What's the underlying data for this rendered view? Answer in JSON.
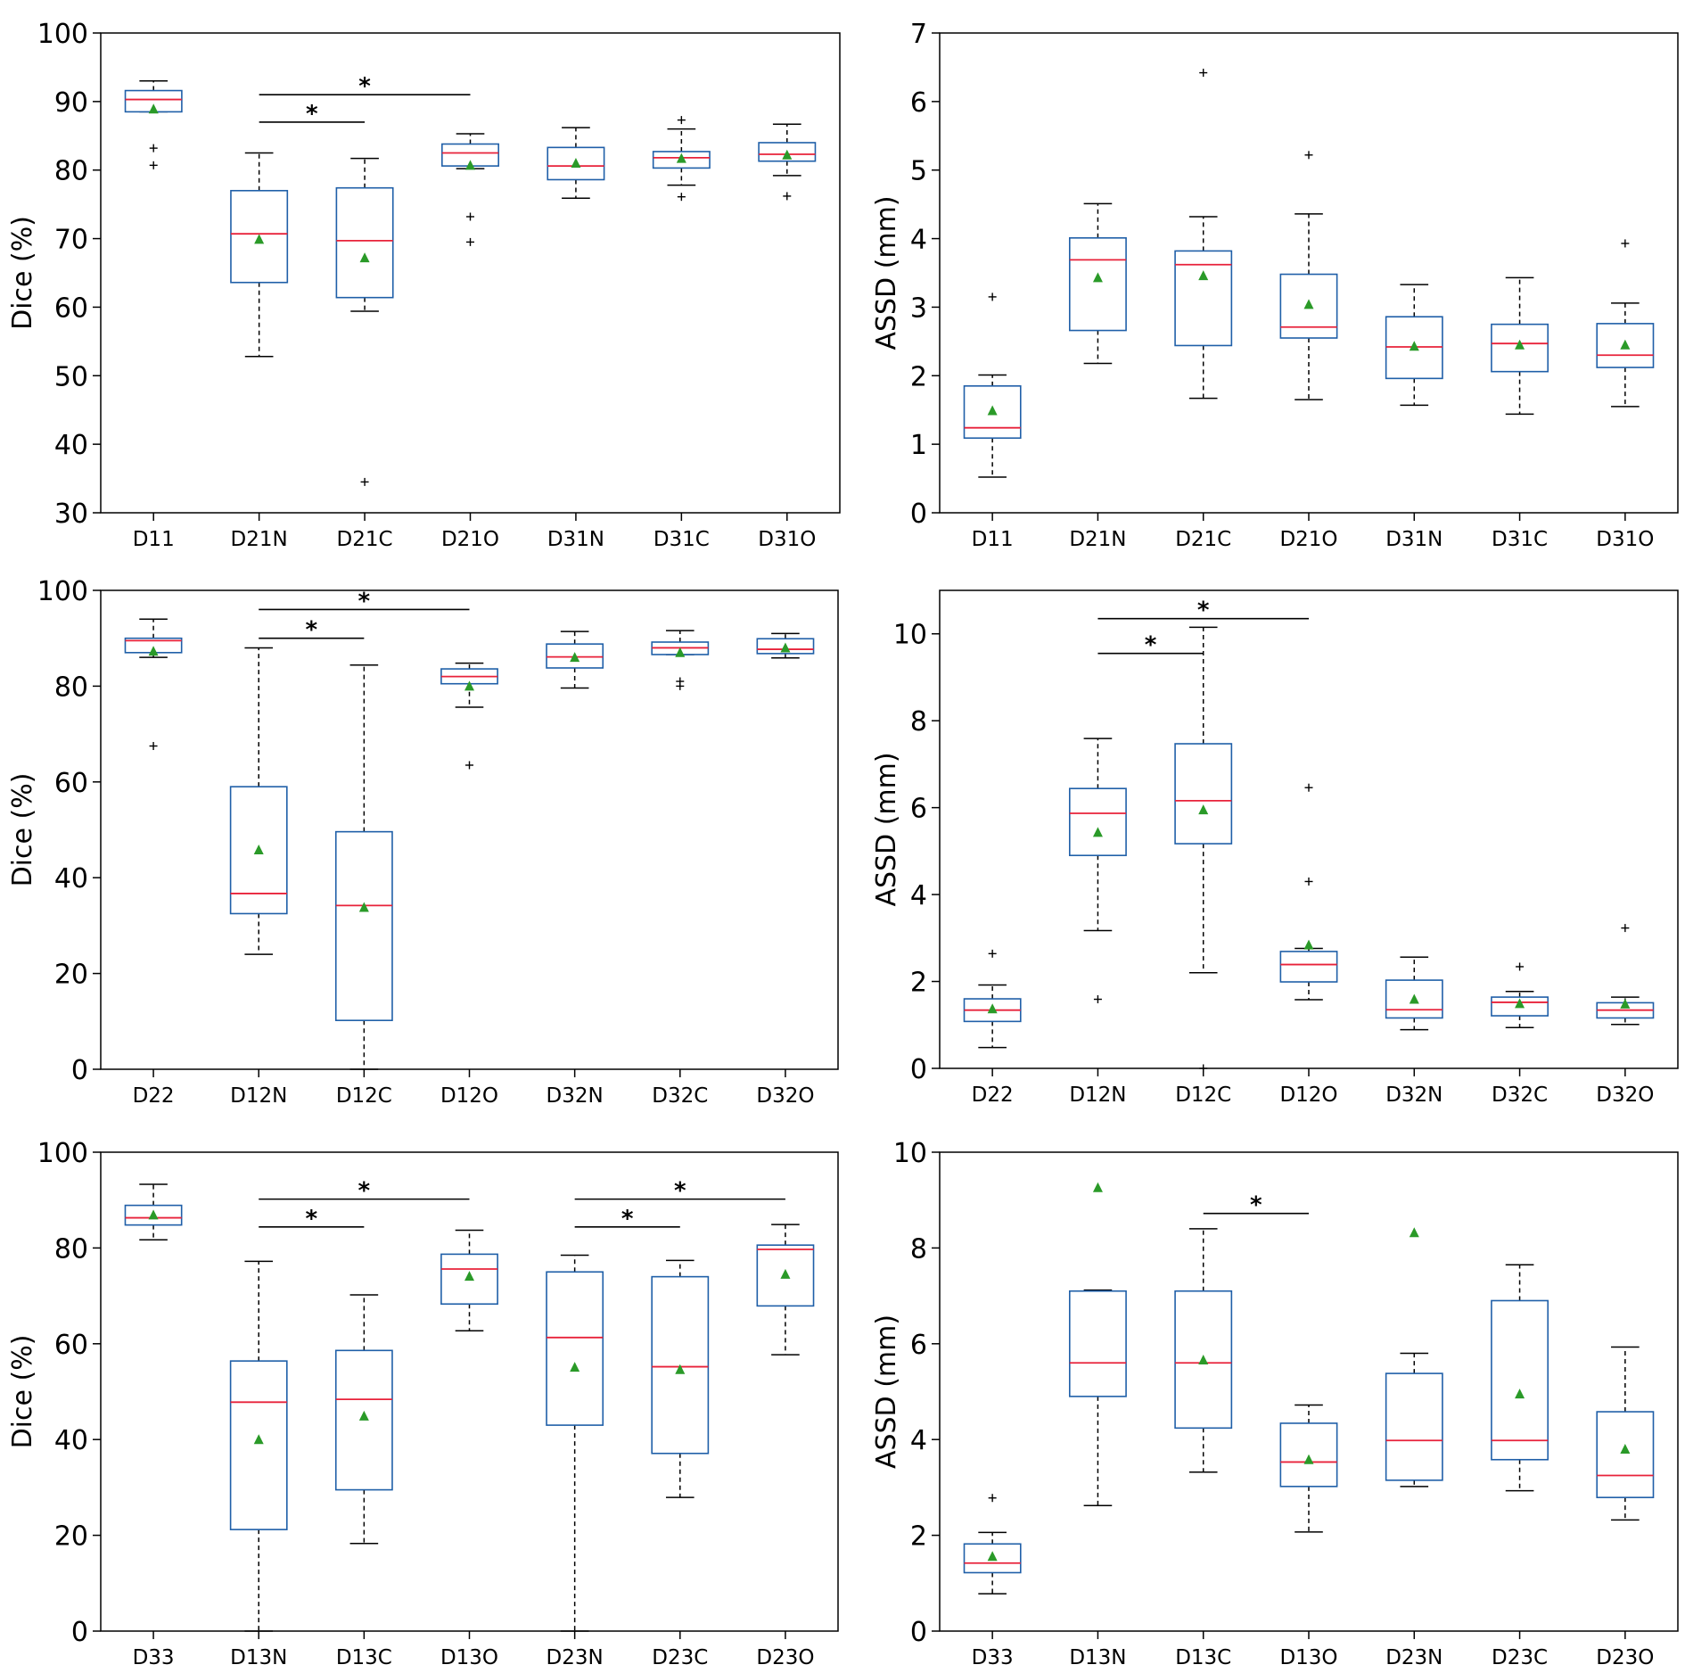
{
  "colors": {
    "box": "#1f5fa8",
    "median": "#e8223a",
    "mean": "#2a9a28",
    "whisker": "#000000",
    "flier": "#000000",
    "frame": "#000000"
  },
  "chart_data": [
    {
      "type": "box",
      "id": "dice-1",
      "ylabel": "Dice (%)",
      "ylim": [
        30,
        100
      ],
      "yticks": [
        30,
        40,
        50,
        60,
        70,
        80,
        90,
        100
      ],
      "categories": [
        "D11",
        "D21N",
        "D21C",
        "D21O",
        "D31N",
        "D31C",
        "D31O"
      ],
      "boxes": [
        {
          "q1": 88.5,
          "median": 90.3,
          "q3": 91.6,
          "whislo": 88.5,
          "whishi": 93.0,
          "mean": 88.9,
          "fliers": [
            83.2,
            80.7
          ]
        },
        {
          "q1": 63.6,
          "median": 70.7,
          "q3": 77.0,
          "whislo": 52.8,
          "whishi": 82.5,
          "mean": 69.9,
          "fliers": []
        },
        {
          "q1": 61.4,
          "median": 69.7,
          "q3": 77.4,
          "whislo": 59.4,
          "whishi": 81.7,
          "mean": 67.2,
          "fliers": [
            34.5
          ]
        },
        {
          "q1": 80.6,
          "median": 82.5,
          "q3": 83.8,
          "whislo": 80.2,
          "whishi": 85.3,
          "mean": 80.7,
          "fliers": [
            73.2,
            69.5
          ]
        },
        {
          "q1": 78.6,
          "median": 80.6,
          "q3": 83.3,
          "whislo": 75.9,
          "whishi": 86.2,
          "mean": 81.0,
          "fliers": []
        },
        {
          "q1": 80.3,
          "median": 81.8,
          "q3": 82.7,
          "whislo": 77.8,
          "whishi": 86.0,
          "mean": 81.7,
          "fliers": [
            87.3,
            76.1
          ]
        },
        {
          "q1": 81.3,
          "median": 82.3,
          "q3": 84.0,
          "whislo": 79.2,
          "whishi": 86.7,
          "mean": 82.2,
          "fliers": [
            76.2
          ]
        }
      ],
      "annotations": [
        {
          "from": 1,
          "to": 3,
          "y": 91.0,
          "label": "*"
        },
        {
          "from": 1,
          "to": 2,
          "y": 87.0,
          "label": "*"
        }
      ]
    },
    {
      "type": "box",
      "id": "assd-1",
      "ylabel": "ASSD (mm)",
      "ylim": [
        0,
        7
      ],
      "yticks": [
        0,
        1,
        2,
        3,
        4,
        5,
        6,
        7
      ],
      "categories": [
        "D11",
        "D21N",
        "D21C",
        "D21O",
        "D31N",
        "D31C",
        "D31O"
      ],
      "boxes": [
        {
          "q1": 1.09,
          "median": 1.24,
          "q3": 1.85,
          "whislo": 0.52,
          "whishi": 2.01,
          "mean": 1.49,
          "fliers": [
            3.15
          ]
        },
        {
          "q1": 2.66,
          "median": 3.69,
          "q3": 4.01,
          "whislo": 2.18,
          "whishi": 4.51,
          "mean": 3.43,
          "fliers": []
        },
        {
          "q1": 2.44,
          "median": 3.62,
          "q3": 3.82,
          "whislo": 1.67,
          "whishi": 4.32,
          "mean": 3.46,
          "fliers": [
            6.42
          ]
        },
        {
          "q1": 2.55,
          "median": 2.71,
          "q3": 3.48,
          "whislo": 1.65,
          "whishi": 4.36,
          "mean": 3.04,
          "fliers": [
            5.22
          ]
        },
        {
          "q1": 1.96,
          "median": 2.42,
          "q3": 2.86,
          "whislo": 1.57,
          "whishi": 3.33,
          "mean": 2.43,
          "fliers": []
        },
        {
          "q1": 2.06,
          "median": 2.47,
          "q3": 2.75,
          "whislo": 1.44,
          "whishi": 3.43,
          "mean": 2.45,
          "fliers": []
        },
        {
          "q1": 2.12,
          "median": 2.3,
          "q3": 2.76,
          "whislo": 1.55,
          "whishi": 3.06,
          "mean": 2.45,
          "fliers": [
            3.93
          ]
        }
      ],
      "annotations": []
    },
    {
      "type": "box",
      "id": "dice-2",
      "ylabel": "Dice (%)",
      "ylim": [
        0,
        100
      ],
      "yticks": [
        0,
        20,
        40,
        60,
        80,
        100
      ],
      "categories": [
        "D22",
        "D12N",
        "D12C",
        "D12O",
        "D32N",
        "D32C",
        "D32O"
      ],
      "boxes": [
        {
          "q1": 87.0,
          "median": 89.5,
          "q3": 90.0,
          "whislo": 86.0,
          "whishi": 94.0,
          "mean": 87.3,
          "fliers": [
            67.5
          ]
        },
        {
          "q1": 32.5,
          "median": 36.7,
          "q3": 59.0,
          "whislo": 24.0,
          "whishi": 88.0,
          "mean": 45.8,
          "fliers": []
        },
        {
          "q1": 10.2,
          "median": 34.2,
          "q3": 49.6,
          "whislo": 0.0,
          "whishi": 84.4,
          "mean": 33.8,
          "fliers": []
        },
        {
          "q1": 80.5,
          "median": 82.0,
          "q3": 83.6,
          "whislo": 75.6,
          "whishi": 84.8,
          "mean": 80.0,
          "fliers": [
            63.5
          ]
        },
        {
          "q1": 83.8,
          "median": 86.1,
          "q3": 88.8,
          "whislo": 79.6,
          "whishi": 91.4,
          "mean": 86.0,
          "fliers": []
        },
        {
          "q1": 86.6,
          "median": 88.0,
          "q3": 89.2,
          "whislo": 86.6,
          "whishi": 91.6,
          "mean": 87.0,
          "fliers": [
            81.0,
            80.0
          ]
        },
        {
          "q1": 86.8,
          "median": 87.7,
          "q3": 89.9,
          "whislo": 85.9,
          "whishi": 91.0,
          "mean": 88.0,
          "fliers": []
        }
      ],
      "annotations": [
        {
          "from": 1,
          "to": 3,
          "y": 96.0,
          "label": "*"
        },
        {
          "from": 1,
          "to": 2,
          "y": 90.0,
          "label": "*"
        }
      ]
    },
    {
      "type": "box",
      "id": "assd-2",
      "ylabel": "ASSD (mm)",
      "ylim": [
        0,
        11
      ],
      "yticks": [
        0,
        2,
        4,
        6,
        8,
        10
      ],
      "categories": [
        "D22",
        "D12N",
        "D12C",
        "D12O",
        "D32N",
        "D32C",
        "D32O"
      ],
      "boxes": [
        {
          "q1": 1.08,
          "median": 1.34,
          "q3": 1.6,
          "whislo": 0.48,
          "whishi": 1.92,
          "mean": 1.37,
          "fliers": [
            2.64
          ]
        },
        {
          "q1": 4.9,
          "median": 5.87,
          "q3": 6.44,
          "whislo": 3.17,
          "whishi": 7.59,
          "mean": 5.43,
          "fliers": [
            1.59
          ]
        },
        {
          "q1": 5.17,
          "median": 6.16,
          "q3": 7.47,
          "whislo": 2.2,
          "whishi": 10.15,
          "mean": 5.95,
          "fliers": [
            0.0
          ]
        },
        {
          "q1": 1.99,
          "median": 2.39,
          "q3": 2.69,
          "whislo": 1.58,
          "whishi": 2.76,
          "mean": 2.84,
          "fliers": [
            6.46,
            4.3
          ]
        },
        {
          "q1": 1.16,
          "median": 1.35,
          "q3": 2.03,
          "whislo": 0.89,
          "whishi": 2.56,
          "mean": 1.59,
          "fliers": []
        },
        {
          "q1": 1.21,
          "median": 1.52,
          "q3": 1.64,
          "whislo": 0.94,
          "whishi": 1.77,
          "mean": 1.49,
          "fliers": [
            2.34
          ]
        },
        {
          "q1": 1.16,
          "median": 1.34,
          "q3": 1.51,
          "whislo": 1.01,
          "whishi": 1.64,
          "mean": 1.48,
          "fliers": [
            3.23
          ]
        }
      ],
      "annotations": [
        {
          "from": 1,
          "to": 3,
          "y": 10.35,
          "label": "*"
        },
        {
          "from": 1,
          "to": 2,
          "y": 9.55,
          "label": "*"
        }
      ]
    },
    {
      "type": "box",
      "id": "dice-3",
      "ylabel": "Dice (%)",
      "ylim": [
        0,
        100
      ],
      "yticks": [
        0,
        20,
        40,
        60,
        80,
        100
      ],
      "categories": [
        "D33",
        "D13N",
        "D13C",
        "D13O",
        "D23N",
        "D23C",
        "D23O"
      ],
      "boxes": [
        {
          "q1": 84.8,
          "median": 86.3,
          "q3": 88.9,
          "whislo": 81.7,
          "whishi": 93.3,
          "mean": 86.9,
          "fliers": []
        },
        {
          "q1": 21.2,
          "median": 47.8,
          "q3": 56.4,
          "whislo": 0.0,
          "whishi": 77.2,
          "mean": 40.0,
          "fliers": []
        },
        {
          "q1": 29.5,
          "median": 48.4,
          "q3": 58.6,
          "whislo": 18.3,
          "whishi": 70.2,
          "mean": 44.9,
          "fliers": []
        },
        {
          "q1": 68.3,
          "median": 75.6,
          "q3": 78.7,
          "whislo": 62.7,
          "whishi": 83.7,
          "mean": 74.1,
          "fliers": []
        },
        {
          "q1": 43.0,
          "median": 61.3,
          "q3": 75.0,
          "whislo": 0.0,
          "whishi": 78.5,
          "mean": 55.1,
          "fliers": []
        },
        {
          "q1": 37.1,
          "median": 55.2,
          "q3": 74.0,
          "whislo": 27.9,
          "whishi": 77.4,
          "mean": 54.6,
          "fliers": []
        },
        {
          "q1": 67.9,
          "median": 79.7,
          "q3": 80.6,
          "whislo": 57.7,
          "whishi": 84.9,
          "mean": 74.5,
          "fliers": []
        }
      ],
      "annotations": [
        {
          "from": 1,
          "to": 3,
          "y": 90.2,
          "label": "*"
        },
        {
          "from": 1,
          "to": 2,
          "y": 84.4,
          "label": "*"
        },
        {
          "from": 4,
          "to": 6,
          "y": 90.2,
          "label": "*"
        },
        {
          "from": 4,
          "to": 5,
          "y": 84.4,
          "label": "*"
        }
      ]
    },
    {
      "type": "box",
      "id": "assd-3",
      "ylabel": "ASSD (mm)",
      "ylim": [
        0,
        10
      ],
      "yticks": [
        0,
        2,
        4,
        6,
        8,
        10
      ],
      "categories": [
        "D33",
        "D13N",
        "D13C",
        "D13O",
        "D23N",
        "D23C",
        "D23O"
      ],
      "boxes": [
        {
          "q1": 1.22,
          "median": 1.42,
          "q3": 1.82,
          "whislo": 0.78,
          "whishi": 2.06,
          "mean": 1.56,
          "fliers": [
            2.78
          ]
        },
        {
          "q1": 4.9,
          "median": 5.6,
          "q3": 7.1,
          "whislo": 2.62,
          "whishi": 7.12,
          "mean": 9.26,
          "fliers": []
        },
        {
          "q1": 4.24,
          "median": 5.6,
          "q3": 7.1,
          "whislo": 3.32,
          "whishi": 8.4,
          "mean": 5.66,
          "fliers": []
        },
        {
          "q1": 3.02,
          "median": 3.53,
          "q3": 4.34,
          "whislo": 2.07,
          "whishi": 4.72,
          "mean": 3.58,
          "fliers": []
        },
        {
          "q1": 3.15,
          "median": 3.98,
          "q3": 5.38,
          "whislo": 3.02,
          "whishi": 5.8,
          "mean": 8.32,
          "fliers": []
        },
        {
          "q1": 3.58,
          "median": 3.98,
          "q3": 6.9,
          "whislo": 2.93,
          "whishi": 7.65,
          "mean": 4.95,
          "fliers": []
        },
        {
          "q1": 2.79,
          "median": 3.25,
          "q3": 4.58,
          "whislo": 2.32,
          "whishi": 5.93,
          "mean": 3.8,
          "fliers": []
        }
      ],
      "annotations": [
        {
          "from": 2,
          "to": 3,
          "y": 8.72,
          "label": "*"
        }
      ]
    }
  ]
}
